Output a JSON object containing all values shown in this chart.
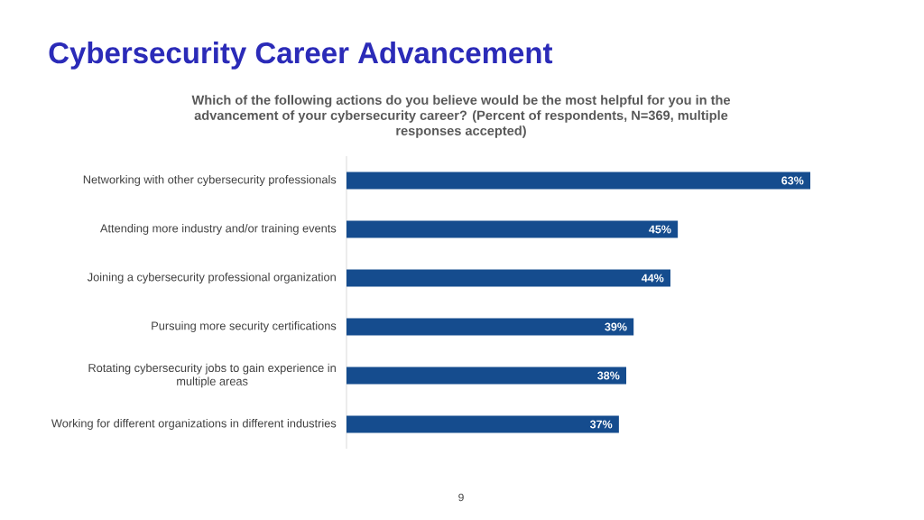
{
  "chart_data": {
    "type": "bar",
    "orientation": "horizontal",
    "title": "Cybersecurity Career Advancement",
    "subtitle": "Which of the following actions do you believe would be the most helpful for you in the advancement of your cybersecurity career? (Percent of respondents, N=369, multiple responses accepted)",
    "categories": [
      "Networking with other cybersecurity professionals",
      "Attending more industry and/or training events",
      "Joining a cybersecurity professional organization",
      "Pursuing more security certifications",
      "Rotating cybersecurity jobs to gain experience in multiple areas",
      "Working for different organizations in different industries"
    ],
    "values": [
      63,
      45,
      44,
      39,
      38,
      37
    ],
    "value_labels": [
      "63%",
      "45%",
      "44%",
      "39%",
      "38%",
      "37%"
    ],
    "color": "#154C8E",
    "xlim": [
      0,
      63
    ],
    "annotations": [
      "9"
    ]
  }
}
